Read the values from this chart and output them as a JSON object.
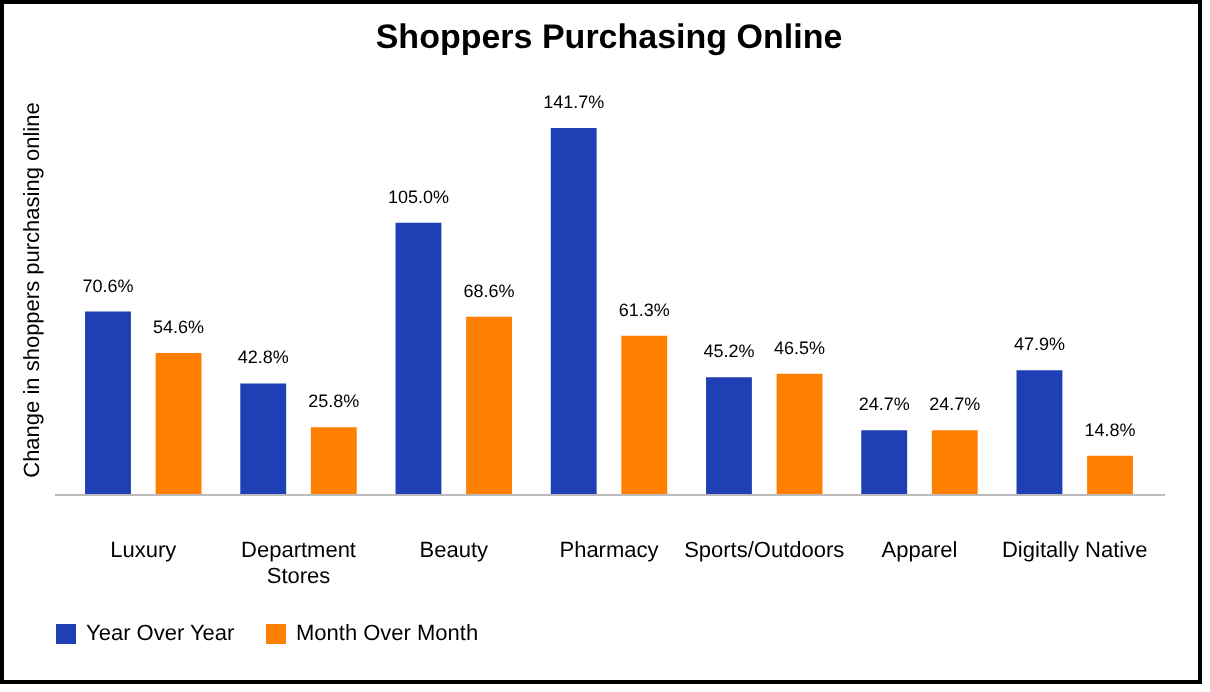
{
  "chart_data": {
    "type": "bar",
    "title": "Shoppers Purchasing Online",
    "ylabel": "Change in shoppers purchasing online",
    "categories": [
      "Luxury",
      "Department Stores",
      "Beauty",
      "Pharmacy",
      "Sports/Outdoors",
      "Apparel",
      "Digitally Native"
    ],
    "series": [
      {
        "name": "Year Over Year",
        "color": "#1f3fb4",
        "values": [
          70.6,
          42.8,
          105.0,
          141.7,
          45.2,
          24.7,
          47.9
        ],
        "value_labels": [
          "70.6%",
          "42.8%",
          "105.0%",
          "141.7%",
          "45.2%",
          "24.7%",
          "47.9%"
        ]
      },
      {
        "name": "Month Over Month",
        "color": "#ff8000",
        "values": [
          54.6,
          25.8,
          68.6,
          61.3,
          46.5,
          24.7,
          14.8
        ],
        "value_labels": [
          "54.6%",
          "25.8%",
          "68.6%",
          "61.3%",
          "46.5%",
          "24.7%",
          "14.8%"
        ]
      }
    ],
    "legend": "bottom",
    "grid": false
  }
}
